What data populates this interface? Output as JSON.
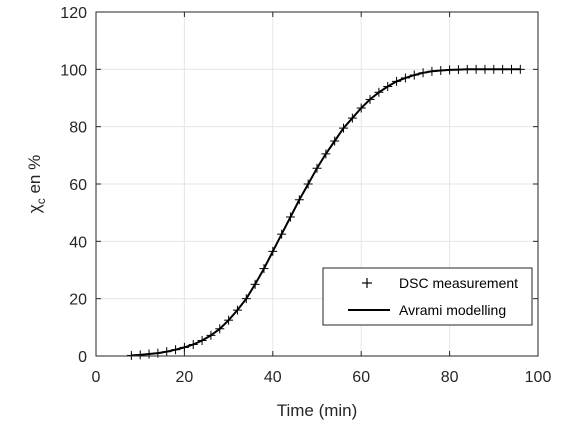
{
  "chart_data": {
    "type": "line",
    "title": "",
    "xlabel": "Time (min)",
    "ylabel": {
      "main": "χ",
      "subscript": "c",
      "suffix": " en %"
    },
    "xlim": [
      0,
      100
    ],
    "ylim": [
      0,
      120
    ],
    "x_ticks": [
      0,
      20,
      40,
      60,
      80,
      100
    ],
    "y_ticks": [
      0,
      20,
      40,
      60,
      80,
      100,
      120
    ],
    "grid": true,
    "legend_position": "lower-right",
    "series": [
      {
        "name": "DSC measurement",
        "marker": "plus",
        "color": "#000000",
        "x": [
          8,
          10,
          12,
          14,
          16,
          18,
          20,
          22,
          24,
          26,
          28,
          30,
          32,
          34,
          36,
          38,
          40,
          42,
          44,
          46,
          48,
          50,
          52,
          54,
          56,
          58,
          60,
          62,
          64,
          66,
          68,
          70,
          72,
          74,
          76,
          78,
          80,
          82,
          84,
          86,
          88,
          90,
          92,
          94,
          96
        ],
        "y": [
          0.2,
          0.4,
          0.7,
          1.0,
          1.5,
          2.2,
          3.0,
          4.0,
          5.4,
          7.2,
          9.5,
          12.5,
          16.0,
          20.0,
          25.0,
          30.5,
          36.5,
          42.5,
          48.5,
          54.5,
          60.0,
          65.5,
          70.5,
          75.0,
          79.5,
          83.0,
          86.5,
          89.5,
          92.0,
          94.0,
          95.8,
          97.0,
          98.0,
          98.8,
          99.3,
          99.6,
          99.8,
          99.9,
          100.0,
          100.0,
          100.0,
          100.0,
          100.0,
          100.0,
          100.0
        ]
      },
      {
        "name": "Avrami modelling",
        "marker": "line",
        "color": "#000000",
        "x": [
          8,
          10,
          12,
          14,
          16,
          18,
          20,
          22,
          24,
          26,
          28,
          30,
          32,
          34,
          36,
          38,
          40,
          42,
          44,
          46,
          48,
          50,
          52,
          54,
          56,
          58,
          60,
          62,
          64,
          66,
          68,
          70,
          72,
          74,
          76,
          78,
          80,
          82,
          84,
          86,
          88,
          90,
          92,
          94,
          96
        ],
        "y": [
          0.2,
          0.4,
          0.7,
          1.0,
          1.5,
          2.2,
          3.0,
          4.0,
          5.4,
          7.2,
          9.5,
          12.5,
          16.0,
          20.0,
          25.0,
          30.5,
          36.5,
          42.5,
          48.5,
          54.5,
          60.0,
          65.5,
          70.5,
          75.0,
          79.5,
          83.0,
          86.5,
          89.5,
          92.0,
          94.0,
          95.8,
          97.0,
          98.0,
          98.8,
          99.3,
          99.6,
          99.8,
          99.9,
          100.0,
          100.0,
          100.0,
          100.0,
          100.0,
          100.0,
          100.0
        ]
      }
    ]
  }
}
